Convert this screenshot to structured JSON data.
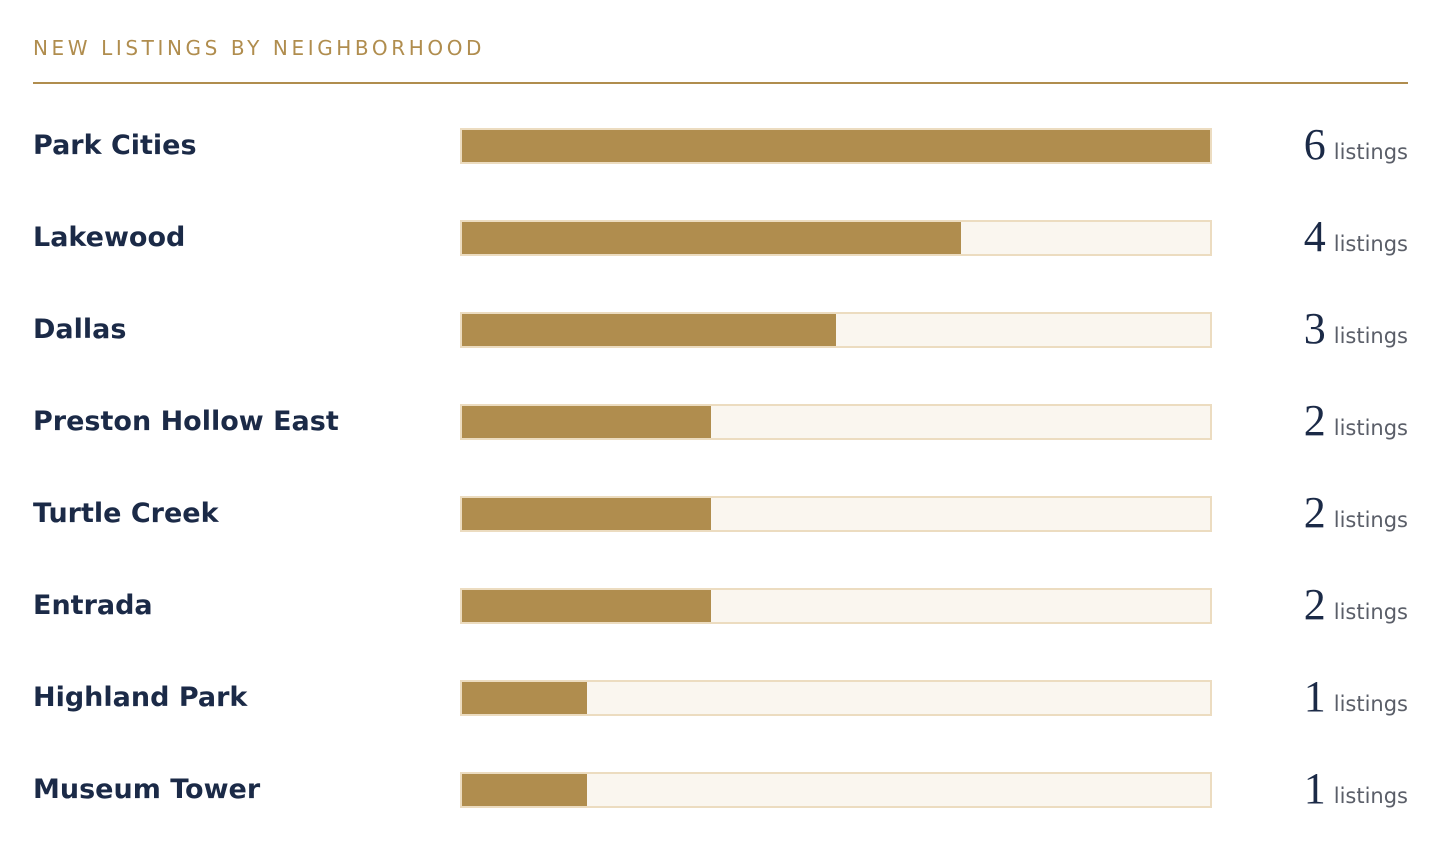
{
  "title": "NEW LISTINGS BY NEIGHBORHOOD",
  "unit_label": "listings",
  "colors": {
    "accent": "#b08d4e",
    "track": "#faf6ef",
    "track_border": "#ecdcc0",
    "label_text": "#1b2a47"
  },
  "chart_data": {
    "type": "bar",
    "orientation": "horizontal",
    "title": "NEW LISTINGS BY NEIGHBORHOOD",
    "categories": [
      "Park Cities",
      "Lakewood",
      "Dallas",
      "Preston Hollow East",
      "Turtle Creek",
      "Entrada",
      "Highland Park",
      "Museum Tower"
    ],
    "values": [
      6,
      4,
      3,
      2,
      2,
      2,
      1,
      1
    ],
    "unit": "listings",
    "xlim": [
      0,
      6
    ],
    "grid": false,
    "legend": false
  }
}
